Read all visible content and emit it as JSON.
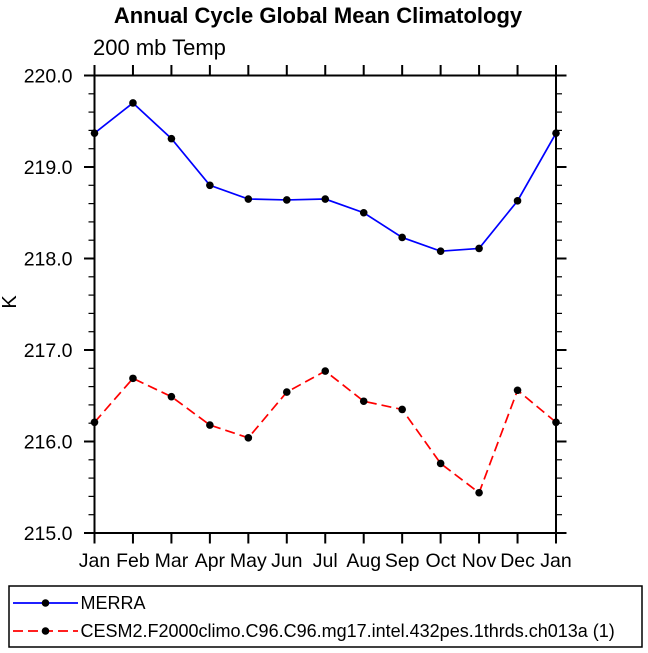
{
  "page": {
    "background": "#ffffff",
    "axis_color": "#000000",
    "text_color": "#000000"
  },
  "chart_data": {
    "type": "line",
    "title": "Annual Cycle Global Mean Climatology",
    "subtitle": "200 mb Temp",
    "ylabel": "K",
    "xlabel": "",
    "categories": [
      "Jan",
      "Feb",
      "Mar",
      "Apr",
      "May",
      "Jun",
      "Jul",
      "Aug",
      "Sep",
      "Oct",
      "Nov",
      "Dec",
      "Jan"
    ],
    "ylim": [
      215.0,
      220.0
    ],
    "y_major_step": 1.0,
    "y_minor_step": 0.2,
    "y_tick_labels": [
      "215.0",
      "216.0",
      "217.0",
      "218.0",
      "219.0",
      "220.0"
    ],
    "grid": false,
    "legend_position": "bottom-left-outside-box",
    "series": [
      {
        "name": "MERRA",
        "color": "#0000ff",
        "line_style": "solid",
        "dash": "none",
        "marker": "filled-circle",
        "marker_color": "#000000",
        "values": [
          219.37,
          219.7,
          219.31,
          218.8,
          218.65,
          218.64,
          218.65,
          218.5,
          218.23,
          218.08,
          218.11,
          218.63,
          219.37
        ]
      },
      {
        "name": "CESM2.F2000climo.C96.C96.mg17.intel.432pes.1thrds.ch013a (1)",
        "color": "#ff0000",
        "line_style": "dashed",
        "dash": "10,5",
        "marker": "filled-circle",
        "marker_color": "#000000",
        "values": [
          216.21,
          216.69,
          216.49,
          216.18,
          216.04,
          216.54,
          216.77,
          216.44,
          216.35,
          215.76,
          215.44,
          216.56,
          216.21
        ]
      }
    ]
  }
}
